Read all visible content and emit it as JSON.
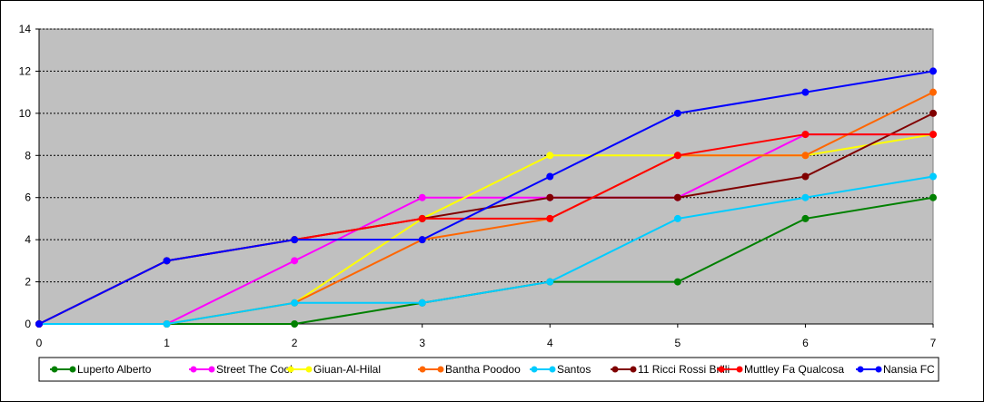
{
  "chart_data": {
    "type": "line",
    "title": "",
    "xlabel": "",
    "ylabel": "",
    "x": [
      0,
      1,
      2,
      3,
      4,
      5,
      6,
      7
    ],
    "xlim": [
      0,
      7
    ],
    "ylim": [
      0,
      14
    ],
    "x_ticks": [
      "0",
      "1",
      "2",
      "3",
      "4",
      "5",
      "6",
      "7"
    ],
    "y_ticks": [
      "0",
      "2",
      "4",
      "6",
      "8",
      "10",
      "12",
      "14"
    ],
    "grid": "horizontal dashed",
    "legend_position": "bottom",
    "plot_background": "#c0c0c0",
    "series": [
      {
        "name": "Luperto Alberto",
        "color": "#008000",
        "values": [
          0,
          0,
          0,
          1,
          2,
          2,
          5,
          6
        ]
      },
      {
        "name": "Street The Cool",
        "color": "#ff00ff",
        "values": [
          0,
          0,
          3,
          6,
          6,
          6,
          9,
          9
        ]
      },
      {
        "name": "Giuan-Al-Hilal",
        "color": "#ffff00",
        "values": [
          0,
          0,
          1,
          5,
          8,
          8,
          8,
          9
        ]
      },
      {
        "name": "Bantha Poodoo",
        "color": "#ff6600",
        "values": [
          0,
          0,
          1,
          4,
          5,
          8,
          8,
          11
        ]
      },
      {
        "name": "Santos",
        "color": "#00ccff",
        "values": [
          0,
          0,
          1,
          1,
          2,
          5,
          6,
          7
        ]
      },
      {
        "name": "11 Ricci Rossi Brilli",
        "color": "#800000",
        "values": [
          0,
          3,
          4,
          5,
          6,
          6,
          7,
          10
        ]
      },
      {
        "name": "Muttley Fa Qualcosa",
        "color": "#ff0000",
        "values": [
          0,
          3,
          4,
          5,
          5,
          8,
          9,
          9
        ]
      },
      {
        "name": "Nansia FC",
        "color": "#0000ff",
        "values": [
          0,
          3,
          4,
          4,
          7,
          10,
          11,
          12
        ]
      }
    ]
  }
}
